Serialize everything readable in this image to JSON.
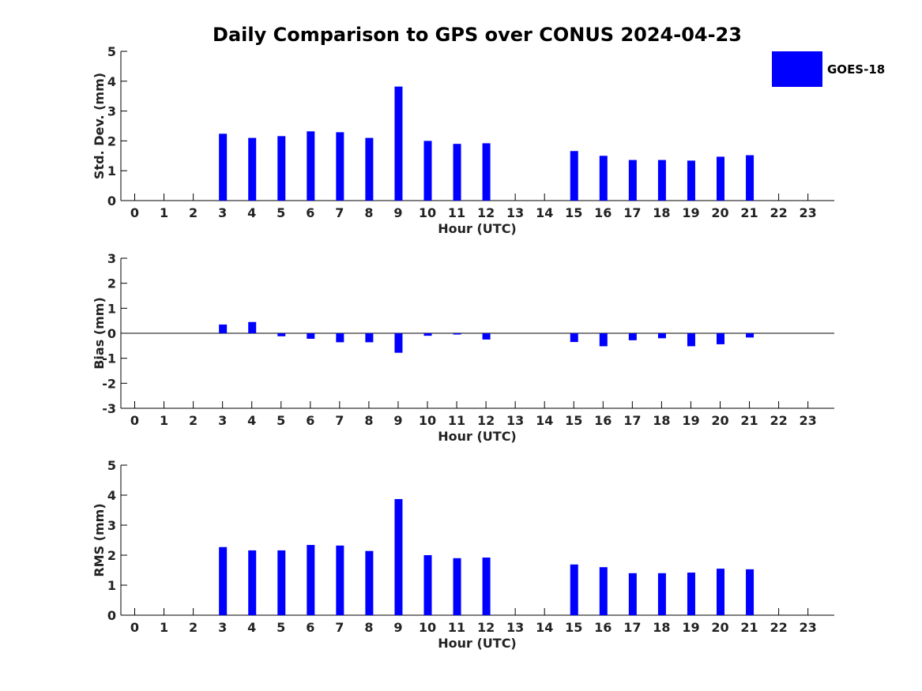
{
  "title": "Daily Comparison to GPS over CONUS 2024-04-23",
  "legend": {
    "label": "GOES-18",
    "color": "#0000ff"
  },
  "chart_data": [
    {
      "type": "bar",
      "id": "std",
      "title": "Daily Comparison to GPS over CONUS 2024-04-23",
      "xlabel": "Hour (UTC)",
      "ylabel": "Std. Dev. (mm)",
      "ylim": [
        0,
        5
      ],
      "yticks": [
        0,
        1,
        2,
        3,
        4,
        5
      ],
      "categories": [
        "0",
        "1",
        "2",
        "3",
        "4",
        "5",
        "6",
        "7",
        "8",
        "9",
        "10",
        "11",
        "12",
        "13",
        "14",
        "15",
        "16",
        "17",
        "18",
        "19",
        "20",
        "21",
        "22",
        "23"
      ],
      "series": [
        {
          "name": "GOES-18",
          "color": "#0000ff",
          "values": [
            null,
            null,
            null,
            2.24,
            2.1,
            2.16,
            2.32,
            2.29,
            2.1,
            3.82,
            2.0,
            1.9,
            1.92,
            null,
            null,
            1.66,
            1.5,
            1.36,
            1.36,
            1.34,
            1.47,
            1.52,
            null,
            null
          ]
        }
      ]
    },
    {
      "type": "bar",
      "id": "bias",
      "xlabel": "Hour (UTC)",
      "ylabel": "Bias (mm)",
      "ylim": [
        -3,
        3
      ],
      "yticks": [
        -3,
        -2,
        -1,
        0,
        1,
        2,
        3
      ],
      "categories": [
        "0",
        "1",
        "2",
        "3",
        "4",
        "5",
        "6",
        "7",
        "8",
        "9",
        "10",
        "11",
        "12",
        "13",
        "14",
        "15",
        "16",
        "17",
        "18",
        "19",
        "20",
        "21",
        "22",
        "23"
      ],
      "series": [
        {
          "name": "GOES-18",
          "color": "#0000ff",
          "values": [
            null,
            null,
            null,
            0.35,
            0.45,
            -0.12,
            -0.22,
            -0.36,
            -0.36,
            -0.78,
            -0.1,
            -0.05,
            -0.25,
            null,
            null,
            -0.35,
            -0.52,
            -0.28,
            -0.2,
            -0.52,
            -0.44,
            -0.17,
            null,
            null
          ]
        }
      ]
    },
    {
      "type": "bar",
      "id": "rms",
      "xlabel": "Hour (UTC)",
      "ylabel": "RMS (mm)",
      "ylim": [
        0,
        5
      ],
      "yticks": [
        0,
        1,
        2,
        3,
        4,
        5
      ],
      "categories": [
        "0",
        "1",
        "2",
        "3",
        "4",
        "5",
        "6",
        "7",
        "8",
        "9",
        "10",
        "11",
        "12",
        "13",
        "14",
        "15",
        "16",
        "17",
        "18",
        "19",
        "20",
        "21",
        "22",
        "23"
      ],
      "series": [
        {
          "name": "GOES-18",
          "color": "#0000ff",
          "values": [
            null,
            null,
            null,
            2.27,
            2.16,
            2.16,
            2.34,
            2.32,
            2.14,
            3.87,
            2.0,
            1.9,
            1.92,
            null,
            null,
            1.69,
            1.6,
            1.4,
            1.4,
            1.42,
            1.55,
            1.53,
            null,
            null
          ]
        }
      ]
    }
  ]
}
